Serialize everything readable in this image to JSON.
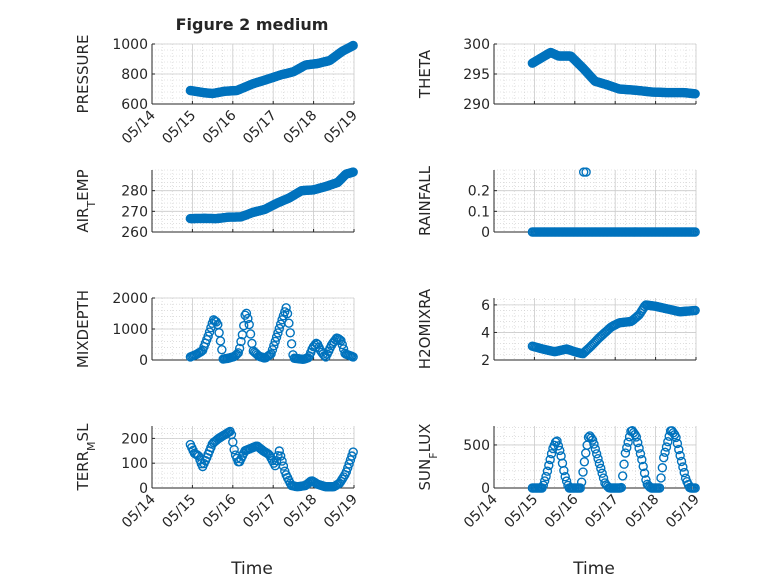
{
  "figure": {
    "title": "Figure 2 medium",
    "xlabel": "Time"
  },
  "colors": {
    "series": "#0072bd",
    "axis": "#262626",
    "grid": "#cccccc",
    "box": "#ffffff"
  },
  "time": {
    "start": "05/14",
    "end": "05/19"
  },
  "chart_data": [
    {
      "type": "scatter",
      "ylabel": "PRESSURE",
      "ylabel_sub": "",
      "ylabel_tail": "",
      "xlim": [
        0,
        5
      ],
      "ylim": [
        600,
        1000
      ],
      "yticks": [
        600,
        800,
        1000
      ],
      "xticks": [
        0,
        1,
        2,
        3,
        4,
        5
      ],
      "xticklabels": [
        "05/14",
        "05/15",
        "05/16",
        "05/17",
        "05/18",
        "05/19"
      ],
      "marker": "filled",
      "x_start": 0.95,
      "x_end": 4.98,
      "anchors": [
        [
          0.95,
          690
        ],
        [
          1.3,
          675
        ],
        [
          1.5,
          670
        ],
        [
          1.8,
          685
        ],
        [
          2.1,
          690
        ],
        [
          2.5,
          735
        ],
        [
          2.8,
          760
        ],
        [
          3.2,
          795
        ],
        [
          3.5,
          815
        ],
        [
          3.8,
          860
        ],
        [
          4.1,
          870
        ],
        [
          4.4,
          890
        ],
        [
          4.7,
          950
        ],
        [
          4.98,
          990
        ]
      ]
    },
    {
      "type": "scatter",
      "ylabel": "THETA",
      "ylabel_sub": "",
      "ylabel_tail": "",
      "xlim": [
        0,
        5
      ],
      "ylim": [
        290,
        300
      ],
      "yticks": [
        290,
        295,
        300
      ],
      "xticks": [
        0,
        1,
        2,
        3,
        4,
        5
      ],
      "xticklabels": [],
      "marker": "filled",
      "x_start": 0.95,
      "x_end": 4.98,
      "anchors": [
        [
          0.95,
          296.8
        ],
        [
          1.2,
          297.8
        ],
        [
          1.4,
          298.6
        ],
        [
          1.6,
          298.0
        ],
        [
          1.9,
          298.0
        ],
        [
          2.2,
          296.0
        ],
        [
          2.5,
          293.8
        ],
        [
          2.8,
          293.2
        ],
        [
          3.1,
          292.5
        ],
        [
          3.5,
          292.3
        ],
        [
          3.9,
          292.0
        ],
        [
          4.3,
          291.9
        ],
        [
          4.7,
          291.9
        ],
        [
          4.98,
          291.7
        ]
      ]
    },
    {
      "type": "scatter",
      "ylabel": "AIR",
      "ylabel_sub": "T",
      "ylabel_tail": "EMP",
      "xlim": [
        0,
        5
      ],
      "ylim": [
        260,
        290
      ],
      "yticks": [
        260,
        270,
        280
      ],
      "xticks": [
        0,
        1,
        2,
        3,
        4,
        5
      ],
      "xticklabels": [],
      "marker": "filled",
      "x_start": 0.95,
      "x_end": 4.98,
      "anchors": [
        [
          0.95,
          266.5
        ],
        [
          1.3,
          266.6
        ],
        [
          1.6,
          266.5
        ],
        [
          1.9,
          267.2
        ],
        [
          2.2,
          267.3
        ],
        [
          2.5,
          269.5
        ],
        [
          2.8,
          271.0
        ],
        [
          3.1,
          274.0
        ],
        [
          3.4,
          276.5
        ],
        [
          3.7,
          280.0
        ],
        [
          4.0,
          280.4
        ],
        [
          4.3,
          282.0
        ],
        [
          4.6,
          284.0
        ],
        [
          4.8,
          288.0
        ],
        [
          4.98,
          289.0
        ]
      ]
    },
    {
      "type": "scatter",
      "ylabel": "RAINFALL",
      "ylabel_sub": "",
      "ylabel_tail": "",
      "xlim": [
        0,
        5
      ],
      "ylim": [
        0,
        0.3
      ],
      "yticks": [
        0,
        0.1,
        0.2
      ],
      "xticks": [
        0,
        1,
        2,
        3,
        4,
        5
      ],
      "xticklabels": [],
      "marker": "open",
      "x_start": 0.95,
      "x_end": 4.98,
      "anchors": [
        [
          0.95,
          0
        ],
        [
          4.98,
          0
        ]
      ],
      "extra_points": [
        [
          2.22,
          0.29
        ],
        [
          2.28,
          0.29
        ]
      ]
    },
    {
      "type": "scatter",
      "ylabel": "MIXDEPTH",
      "ylabel_sub": "",
      "ylabel_tail": "",
      "xlim": [
        0,
        5
      ],
      "ylim": [
        0,
        2000
      ],
      "yticks": [
        0,
        1000,
        2000
      ],
      "xticks": [
        0,
        1,
        2,
        3,
        4,
        5
      ],
      "xticklabels": [],
      "marker": "open",
      "x_start": 0.95,
      "x_end": 4.98,
      "anchors": [
        [
          0.95,
          100
        ],
        [
          1.1,
          180
        ],
        [
          1.25,
          300
        ],
        [
          1.4,
          800
        ],
        [
          1.52,
          1300
        ],
        [
          1.62,
          1200
        ],
        [
          1.72,
          420
        ],
        [
          1.76,
          30
        ],
        [
          1.9,
          60
        ],
        [
          2.05,
          120
        ],
        [
          2.15,
          250
        ],
        [
          2.25,
          900
        ],
        [
          2.32,
          1600
        ],
        [
          2.4,
          1200
        ],
        [
          2.5,
          300
        ],
        [
          2.65,
          120
        ],
        [
          2.8,
          60
        ],
        [
          2.95,
          200
        ],
        [
          3.1,
          800
        ],
        [
          3.22,
          1300
        ],
        [
          3.33,
          1720
        ],
        [
          3.42,
          900
        ],
        [
          3.5,
          60
        ],
        [
          3.75,
          20
        ],
        [
          3.88,
          80
        ],
        [
          3.98,
          400
        ],
        [
          4.08,
          560
        ],
        [
          4.18,
          280
        ],
        [
          4.3,
          90
        ],
        [
          4.45,
          500
        ],
        [
          4.58,
          720
        ],
        [
          4.68,
          620
        ],
        [
          4.78,
          200
        ],
        [
          4.98,
          100
        ]
      ]
    },
    {
      "type": "scatter",
      "ylabel": "H2OMIXRA",
      "ylabel_sub": "",
      "ylabel_tail": "",
      "xlim": [
        0,
        5
      ],
      "ylim": [
        2,
        6.5
      ],
      "yticks": [
        2,
        4,
        6
      ],
      "xticks": [
        0,
        1,
        2,
        3,
        4,
        5
      ],
      "xticklabels": [],
      "marker": "open",
      "x_start": 0.95,
      "x_end": 4.98,
      "anchors": [
        [
          0.95,
          3.0
        ],
        [
          1.2,
          2.8
        ],
        [
          1.5,
          2.6
        ],
        [
          1.8,
          2.8
        ],
        [
          2.0,
          2.6
        ],
        [
          2.2,
          2.45
        ],
        [
          2.4,
          3.0
        ],
        [
          2.6,
          3.6
        ],
        [
          2.9,
          4.4
        ],
        [
          3.1,
          4.7
        ],
        [
          3.4,
          4.8
        ],
        [
          3.6,
          5.3
        ],
        [
          3.75,
          6.0
        ],
        [
          4.0,
          5.9
        ],
        [
          4.3,
          5.7
        ],
        [
          4.6,
          5.5
        ],
        [
          4.98,
          5.6
        ]
      ]
    },
    {
      "type": "scatter",
      "ylabel": "TERR",
      "ylabel_sub": "M",
      "ylabel_tail": "SL",
      "xlim": [
        0,
        5
      ],
      "ylim": [
        0,
        250
      ],
      "yticks": [
        0,
        100,
        200
      ],
      "xticks": [
        0,
        1,
        2,
        3,
        4,
        5
      ],
      "xticklabels": [
        "05/14",
        "05/15",
        "05/16",
        "05/17",
        "05/18",
        "05/19"
      ],
      "marker": "open",
      "x_start": 0.95,
      "x_end": 4.98,
      "anchors": [
        [
          0.95,
          175
        ],
        [
          1.05,
          140
        ],
        [
          1.15,
          130
        ],
        [
          1.25,
          85
        ],
        [
          1.35,
          120
        ],
        [
          1.5,
          180
        ],
        [
          1.65,
          200
        ],
        [
          1.8,
          215
        ],
        [
          1.95,
          230
        ],
        [
          2.05,
          140
        ],
        [
          2.15,
          100
        ],
        [
          2.3,
          150
        ],
        [
          2.45,
          160
        ],
        [
          2.6,
          170
        ],
        [
          2.75,
          150
        ],
        [
          2.9,
          135
        ],
        [
          3.05,
          90
        ],
        [
          3.15,
          150
        ],
        [
          3.3,
          60
        ],
        [
          3.45,
          10
        ],
        [
          3.6,
          5
        ],
        [
          3.8,
          10
        ],
        [
          3.95,
          30
        ],
        [
          4.1,
          15
        ],
        [
          4.3,
          5
        ],
        [
          4.5,
          5
        ],
        [
          4.65,
          20
        ],
        [
          4.8,
          60
        ],
        [
          4.98,
          145
        ]
      ]
    },
    {
      "type": "scatter",
      "ylabel": "SUN",
      "ylabel_sub": "F",
      "ylabel_tail": "LUX",
      "xlim": [
        0,
        5
      ],
      "ylim": [
        0,
        720
      ],
      "yticks": [
        0,
        500
      ],
      "xticks": [
        0,
        1,
        2,
        3,
        4,
        5
      ],
      "xticklabels": [
        "05/14",
        "05/15",
        "05/16",
        "05/17",
        "05/18",
        "05/19"
      ],
      "marker": "open",
      "x_start": 0.95,
      "x_end": 4.98,
      "anchors": [
        [
          0.95,
          0
        ],
        [
          1.2,
          0
        ],
        [
          1.3,
          150
        ],
        [
          1.45,
          450
        ],
        [
          1.55,
          560
        ],
        [
          1.65,
          400
        ],
        [
          1.75,
          150
        ],
        [
          1.85,
          0
        ],
        [
          2.15,
          0
        ],
        [
          2.25,
          350
        ],
        [
          2.35,
          620
        ],
        [
          2.45,
          550
        ],
        [
          2.6,
          300
        ],
        [
          2.75,
          50
        ],
        [
          2.85,
          0
        ],
        [
          3.15,
          0
        ],
        [
          3.25,
          400
        ],
        [
          3.4,
          680
        ],
        [
          3.52,
          600
        ],
        [
          3.65,
          350
        ],
        [
          3.78,
          50
        ],
        [
          3.88,
          0
        ],
        [
          4.1,
          0
        ],
        [
          4.2,
          350
        ],
        [
          4.38,
          680
        ],
        [
          4.5,
          600
        ],
        [
          4.62,
          350
        ],
        [
          4.75,
          100
        ],
        [
          4.85,
          0
        ],
        [
          4.98,
          0
        ]
      ]
    }
  ]
}
